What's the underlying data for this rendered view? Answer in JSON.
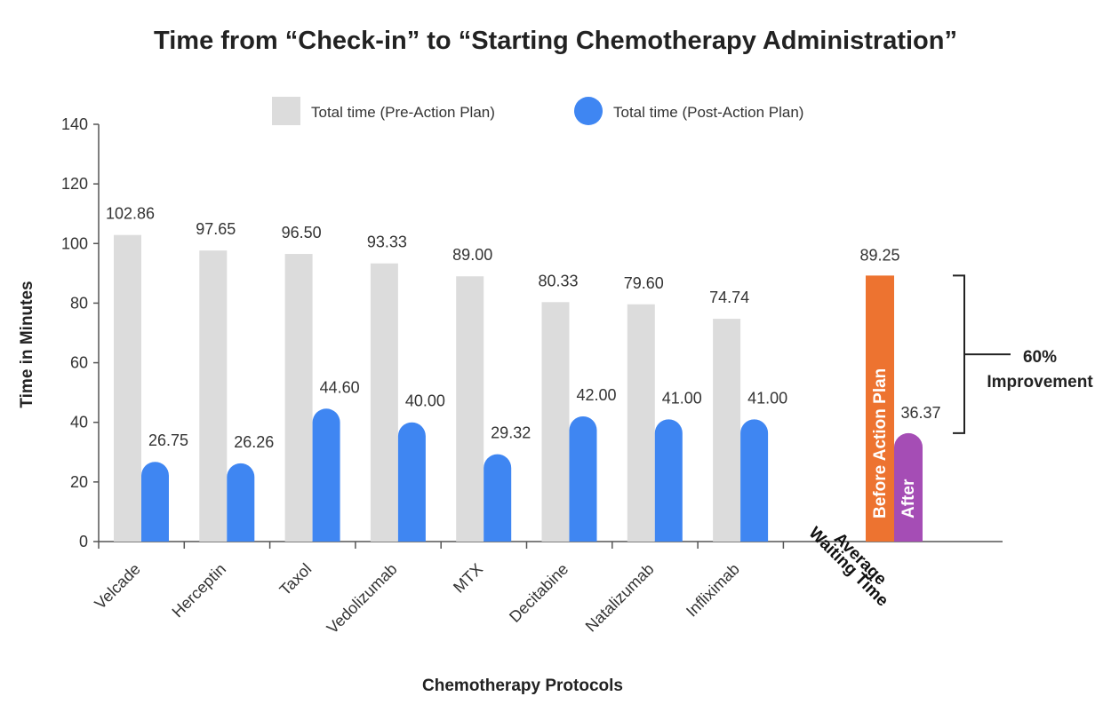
{
  "chart_data": {
    "type": "bar",
    "title": "Time from “Check-in” to “Starting Chemotherapy Administration”",
    "xlabel": "Chemotherapy Protocols",
    "ylabel": "Time in Minutes",
    "ylim": [
      0,
      140
    ],
    "yticks": [
      0,
      20,
      40,
      60,
      80,
      100,
      120,
      140
    ],
    "grid": false,
    "legend_position": "top",
    "categories": [
      "Velcade",
      "Herceptin",
      "Taxol",
      "Vedolizumab",
      "MTX",
      "Decitabine",
      "Natalizumab",
      "Infliximab"
    ],
    "series": [
      {
        "name": "Total time (Pre-Action Plan)",
        "color": "#dcdcdc",
        "values": [
          102.86,
          97.65,
          96.5,
          93.33,
          89.0,
          80.33,
          79.6,
          74.74
        ],
        "labels": [
          "102.86",
          "97.65",
          "96.50",
          "93.33",
          "89.00",
          "80.33",
          "79.60",
          "74.74"
        ]
      },
      {
        "name": "Total time (Post-Action Plan)",
        "color": "#3f86f2",
        "values": [
          26.75,
          26.26,
          44.6,
          40.0,
          29.32,
          42.0,
          41.0,
          41.0
        ],
        "labels": [
          "26.75",
          "26.26",
          "44.60",
          "40.00",
          "29.32",
          "42.00",
          "41.00",
          "41.00"
        ]
      }
    ],
    "average": {
      "category": [
        "Average",
        "Waiting Time"
      ],
      "before": {
        "label": "Before Action Plan",
        "value": 89.25,
        "value_label": "89.25",
        "color": "#ed7330"
      },
      "after": {
        "label": "After",
        "value": 36.37,
        "value_label": "36.37",
        "color": "#a54db5"
      }
    },
    "annotation": {
      "line1": "60%",
      "line2": "Improvement"
    }
  }
}
